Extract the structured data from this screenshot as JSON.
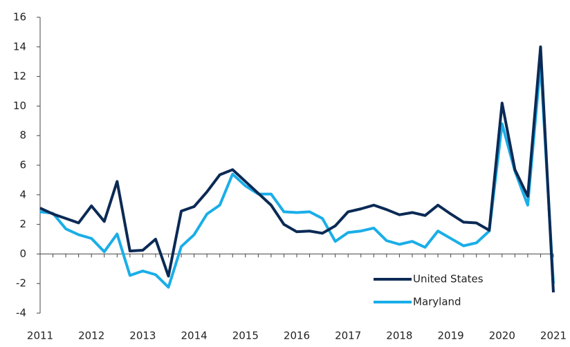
{
  "chart_data": {
    "type": "line",
    "categories": [
      "2011",
      null,
      null,
      null,
      "2012",
      null,
      null,
      null,
      "2013",
      null,
      null,
      null,
      "2014",
      null,
      null,
      null,
      "2015",
      null,
      null,
      null,
      "2016",
      null,
      null,
      null,
      "2017",
      null,
      null,
      null,
      "2018",
      null,
      null,
      null,
      "2019",
      null,
      null,
      null,
      "2020",
      null,
      null,
      null,
      "2021"
    ],
    "series": [
      {
        "name": "United States",
        "color": "#0b2a55",
        "values": [
          3.1,
          2.7,
          2.4,
          2.1,
          3.25,
          2.2,
          4.9,
          0.2,
          0.25,
          1.0,
          -1.5,
          2.9,
          3.2,
          4.2,
          5.35,
          5.7,
          4.9,
          4.1,
          3.3,
          2.0,
          1.5,
          1.55,
          1.4,
          1.9,
          2.85,
          3.05,
          3.3,
          3.0,
          2.65,
          2.8,
          2.6,
          3.3,
          2.7,
          2.15,
          2.1,
          1.6,
          10.2,
          5.7,
          3.9,
          14.0,
          -2.6
        ]
      },
      {
        "name": "Maryland",
        "color": "#1aaee8",
        "values": [
          2.85,
          2.75,
          1.7,
          1.3,
          1.05,
          0.15,
          1.35,
          -1.45,
          -1.15,
          -1.4,
          -2.25,
          0.5,
          1.3,
          2.7,
          3.3,
          5.4,
          4.6,
          4.05,
          4.05,
          2.85,
          2.8,
          2.85,
          2.4,
          0.85,
          1.45,
          1.55,
          1.75,
          0.9,
          0.65,
          0.85,
          0.45,
          1.55,
          1.05,
          0.55,
          0.75,
          1.55,
          8.8,
          5.6,
          3.3,
          12.9,
          -2.0
        ]
      }
    ],
    "ylim": [
      -4,
      16
    ],
    "yticks": [
      -4,
      -2,
      0,
      2,
      4,
      6,
      8,
      10,
      12,
      14,
      16
    ],
    "legend": "lower right"
  }
}
